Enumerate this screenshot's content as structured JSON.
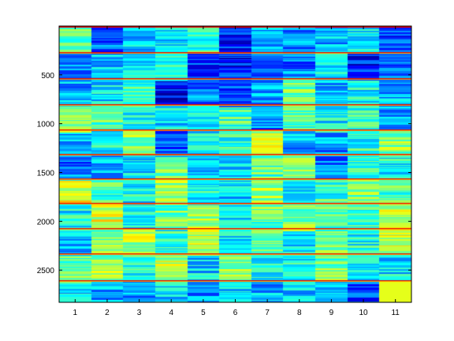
{
  "chart_data": {
    "type": "heatmap",
    "title": "",
    "xlabel": "",
    "ylabel": "",
    "colormap": "jet",
    "x": {
      "min": 0.5,
      "max": 11.5,
      "ticks": [
        1,
        2,
        3,
        4,
        5,
        6,
        7,
        8,
        9,
        10,
        11
      ],
      "tick_labels": [
        "1",
        "2",
        "3",
        "4",
        "5",
        "6",
        "7",
        "8",
        "9",
        "10",
        "11"
      ]
    },
    "y": {
      "min": 0,
      "max": 2830,
      "reversed": true,
      "ticks": [
        500,
        1000,
        1500,
        2000,
        2500
      ],
      "tick_labels": [
        "500",
        "1000",
        "1500",
        "2000",
        "2500"
      ]
    },
    "row_count": 2830,
    "column_count": 11,
    "separator_rows": [
      0,
      265,
      535,
      800,
      1060,
      1310,
      1560,
      1810,
      2070,
      2330,
      2600
    ],
    "separator_value": 0.9,
    "band_base_values": [
      [
        0.45,
        0.22,
        0.32,
        0.35,
        0.42,
        0.15,
        0.28,
        0.26,
        0.3,
        0.38,
        0.18
      ],
      [
        0.26,
        0.32,
        0.35,
        0.4,
        0.18,
        0.16,
        0.25,
        0.25,
        0.38,
        0.15,
        0.22
      ],
      [
        0.3,
        0.35,
        0.45,
        0.12,
        0.26,
        0.2,
        0.3,
        0.48,
        0.32,
        0.38,
        0.3
      ],
      [
        0.48,
        0.45,
        0.4,
        0.35,
        0.36,
        0.45,
        0.25,
        0.44,
        0.38,
        0.42,
        0.28
      ],
      [
        0.3,
        0.38,
        0.52,
        0.22,
        0.38,
        0.42,
        0.55,
        0.3,
        0.28,
        0.4,
        0.5
      ],
      [
        0.24,
        0.32,
        0.35,
        0.5,
        0.3,
        0.32,
        0.46,
        0.5,
        0.24,
        0.42,
        0.38
      ],
      [
        0.6,
        0.45,
        0.38,
        0.55,
        0.4,
        0.34,
        0.52,
        0.38,
        0.42,
        0.5,
        0.44
      ],
      [
        0.38,
        0.58,
        0.38,
        0.48,
        0.54,
        0.36,
        0.46,
        0.5,
        0.44,
        0.42,
        0.55
      ],
      [
        0.3,
        0.48,
        0.55,
        0.42,
        0.58,
        0.38,
        0.45,
        0.35,
        0.54,
        0.4,
        0.58
      ],
      [
        0.46,
        0.52,
        0.4,
        0.56,
        0.34,
        0.5,
        0.4,
        0.38,
        0.48,
        0.36,
        0.35
      ],
      [
        0.35,
        0.3,
        0.28,
        0.34,
        0.26,
        0.35,
        0.3,
        0.32,
        0.28,
        0.2,
        0.6
      ]
    ],
    "grid": false,
    "legend": "none"
  }
}
